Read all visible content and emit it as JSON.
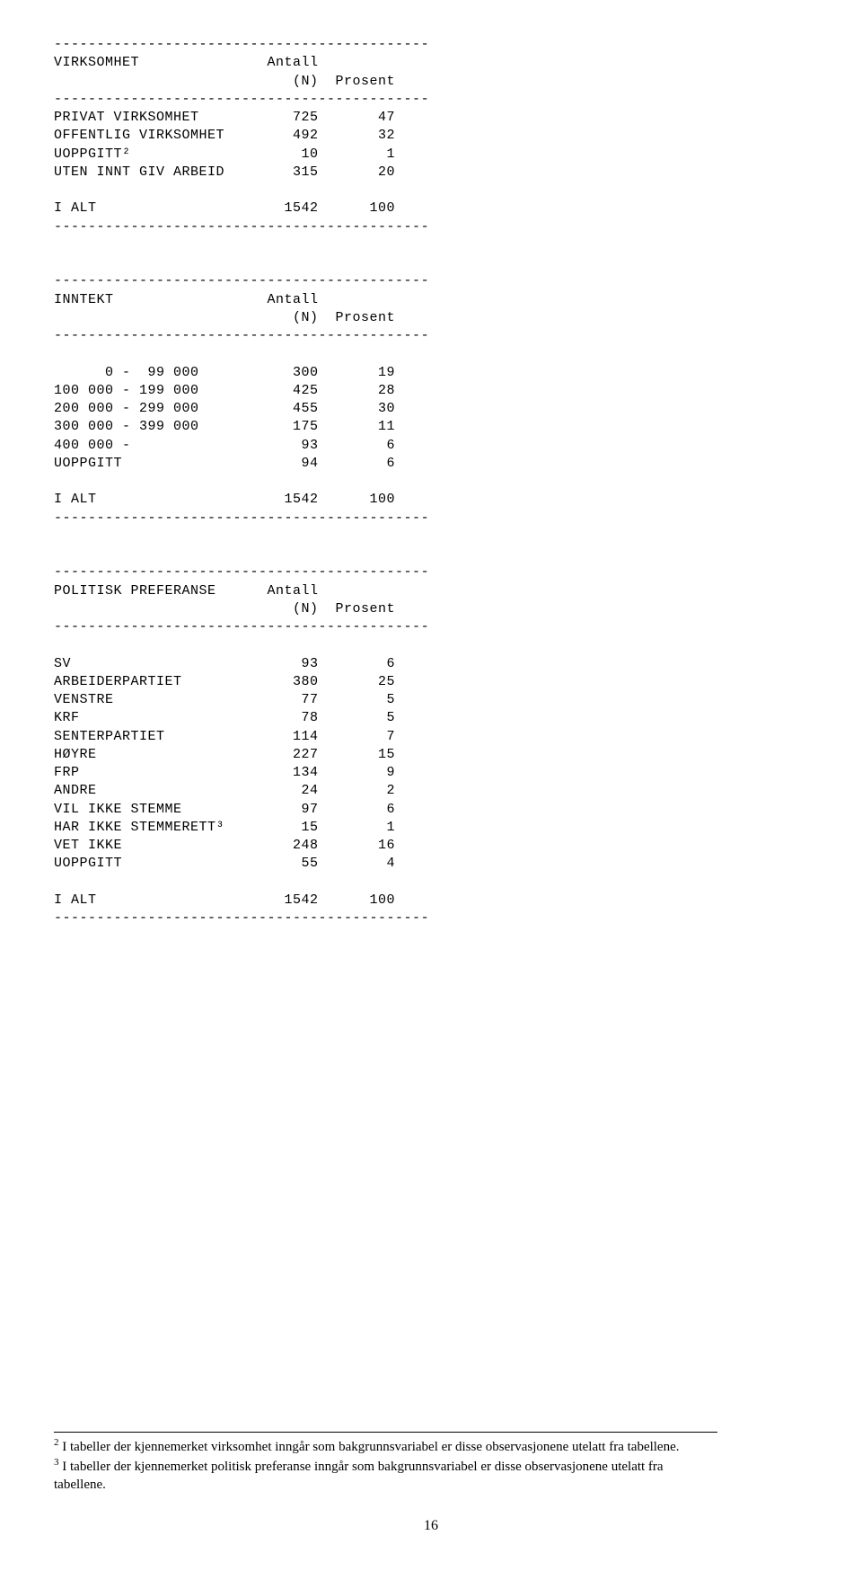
{
  "tables": [
    {
      "header_label": "VIRKSOMHET",
      "col_n_header1": "Antall",
      "col_n_header2": "(N)",
      "col_pct_header": "Prosent",
      "rows": [
        {
          "label": "PRIVAT VIRKSOMHET",
          "n": "725",
          "pct": "47"
        },
        {
          "label": "OFFENTLIG VIRKSOMHET",
          "n": "492",
          "pct": "32"
        },
        {
          "label": "UOPPGITT²",
          "n": "10",
          "pct": "1"
        },
        {
          "label": "UTEN INNT GIV ARBEID",
          "n": "315",
          "pct": "20"
        }
      ],
      "total": {
        "label": "I ALT",
        "n": "1542",
        "pct": "100"
      }
    },
    {
      "header_label": "INNTEKT",
      "col_n_header1": "Antall",
      "col_n_header2": "(N)",
      "col_pct_header": "Prosent",
      "rows": [
        {
          "label": "      0 -  99 000",
          "n": "300",
          "pct": "19"
        },
        {
          "label": "100 000 - 199 000",
          "n": "425",
          "pct": "28"
        },
        {
          "label": "200 000 - 299 000",
          "n": "455",
          "pct": "30"
        },
        {
          "label": "300 000 - 399 000",
          "n": "175",
          "pct": "11"
        },
        {
          "label": "400 000 -",
          "n": "93",
          "pct": "6"
        },
        {
          "label": "UOPPGITT",
          "n": "94",
          "pct": "6"
        }
      ],
      "total": {
        "label": "I ALT",
        "n": "1542",
        "pct": "100"
      }
    },
    {
      "header_label": "POLITISK PREFERANSE",
      "col_n_header1": "Antall",
      "col_n_header2": "(N)",
      "col_pct_header": "Prosent",
      "rows": [
        {
          "label": "SV",
          "n": "93",
          "pct": "6"
        },
        {
          "label": "ARBEIDERPARTIET",
          "n": "380",
          "pct": "25"
        },
        {
          "label": "VENSTRE",
          "n": "77",
          "pct": "5"
        },
        {
          "label": "KRF",
          "n": "78",
          "pct": "5"
        },
        {
          "label": "SENTERPARTIET",
          "n": "114",
          "pct": "7"
        },
        {
          "label": "HØYRE",
          "n": "227",
          "pct": "15"
        },
        {
          "label": "FRP",
          "n": "134",
          "pct": "9"
        },
        {
          "label": "ANDRE",
          "n": "24",
          "pct": "2"
        },
        {
          "label": "VIL IKKE STEMME",
          "n": "97",
          "pct": "6"
        },
        {
          "label": "HAR IKKE STEMMERETT³",
          "n": "15",
          "pct": "1"
        },
        {
          "label": "VET IKKE",
          "n": "248",
          "pct": "16"
        },
        {
          "label": "UOPPGITT",
          "n": "55",
          "pct": "4"
        }
      ],
      "total": {
        "label": "I ALT",
        "n": "1542",
        "pct": "100"
      }
    }
  ],
  "layout": {
    "dash_line_width": 44,
    "label_col_width": 24,
    "n_col_width": 7,
    "pct_col_width": 9
  },
  "footnotes": {
    "f2": "I tabeller der kjennemerket virksomhet inngår som bakgrunnsvariabel er disse observasjonene utelatt fra tabellene.",
    "f3": "I tabeller der kjennemerket politisk preferanse inngår som bakgrunnsvariabel er disse observasjonene utelatt fra tabellene."
  },
  "page_number": "16"
}
